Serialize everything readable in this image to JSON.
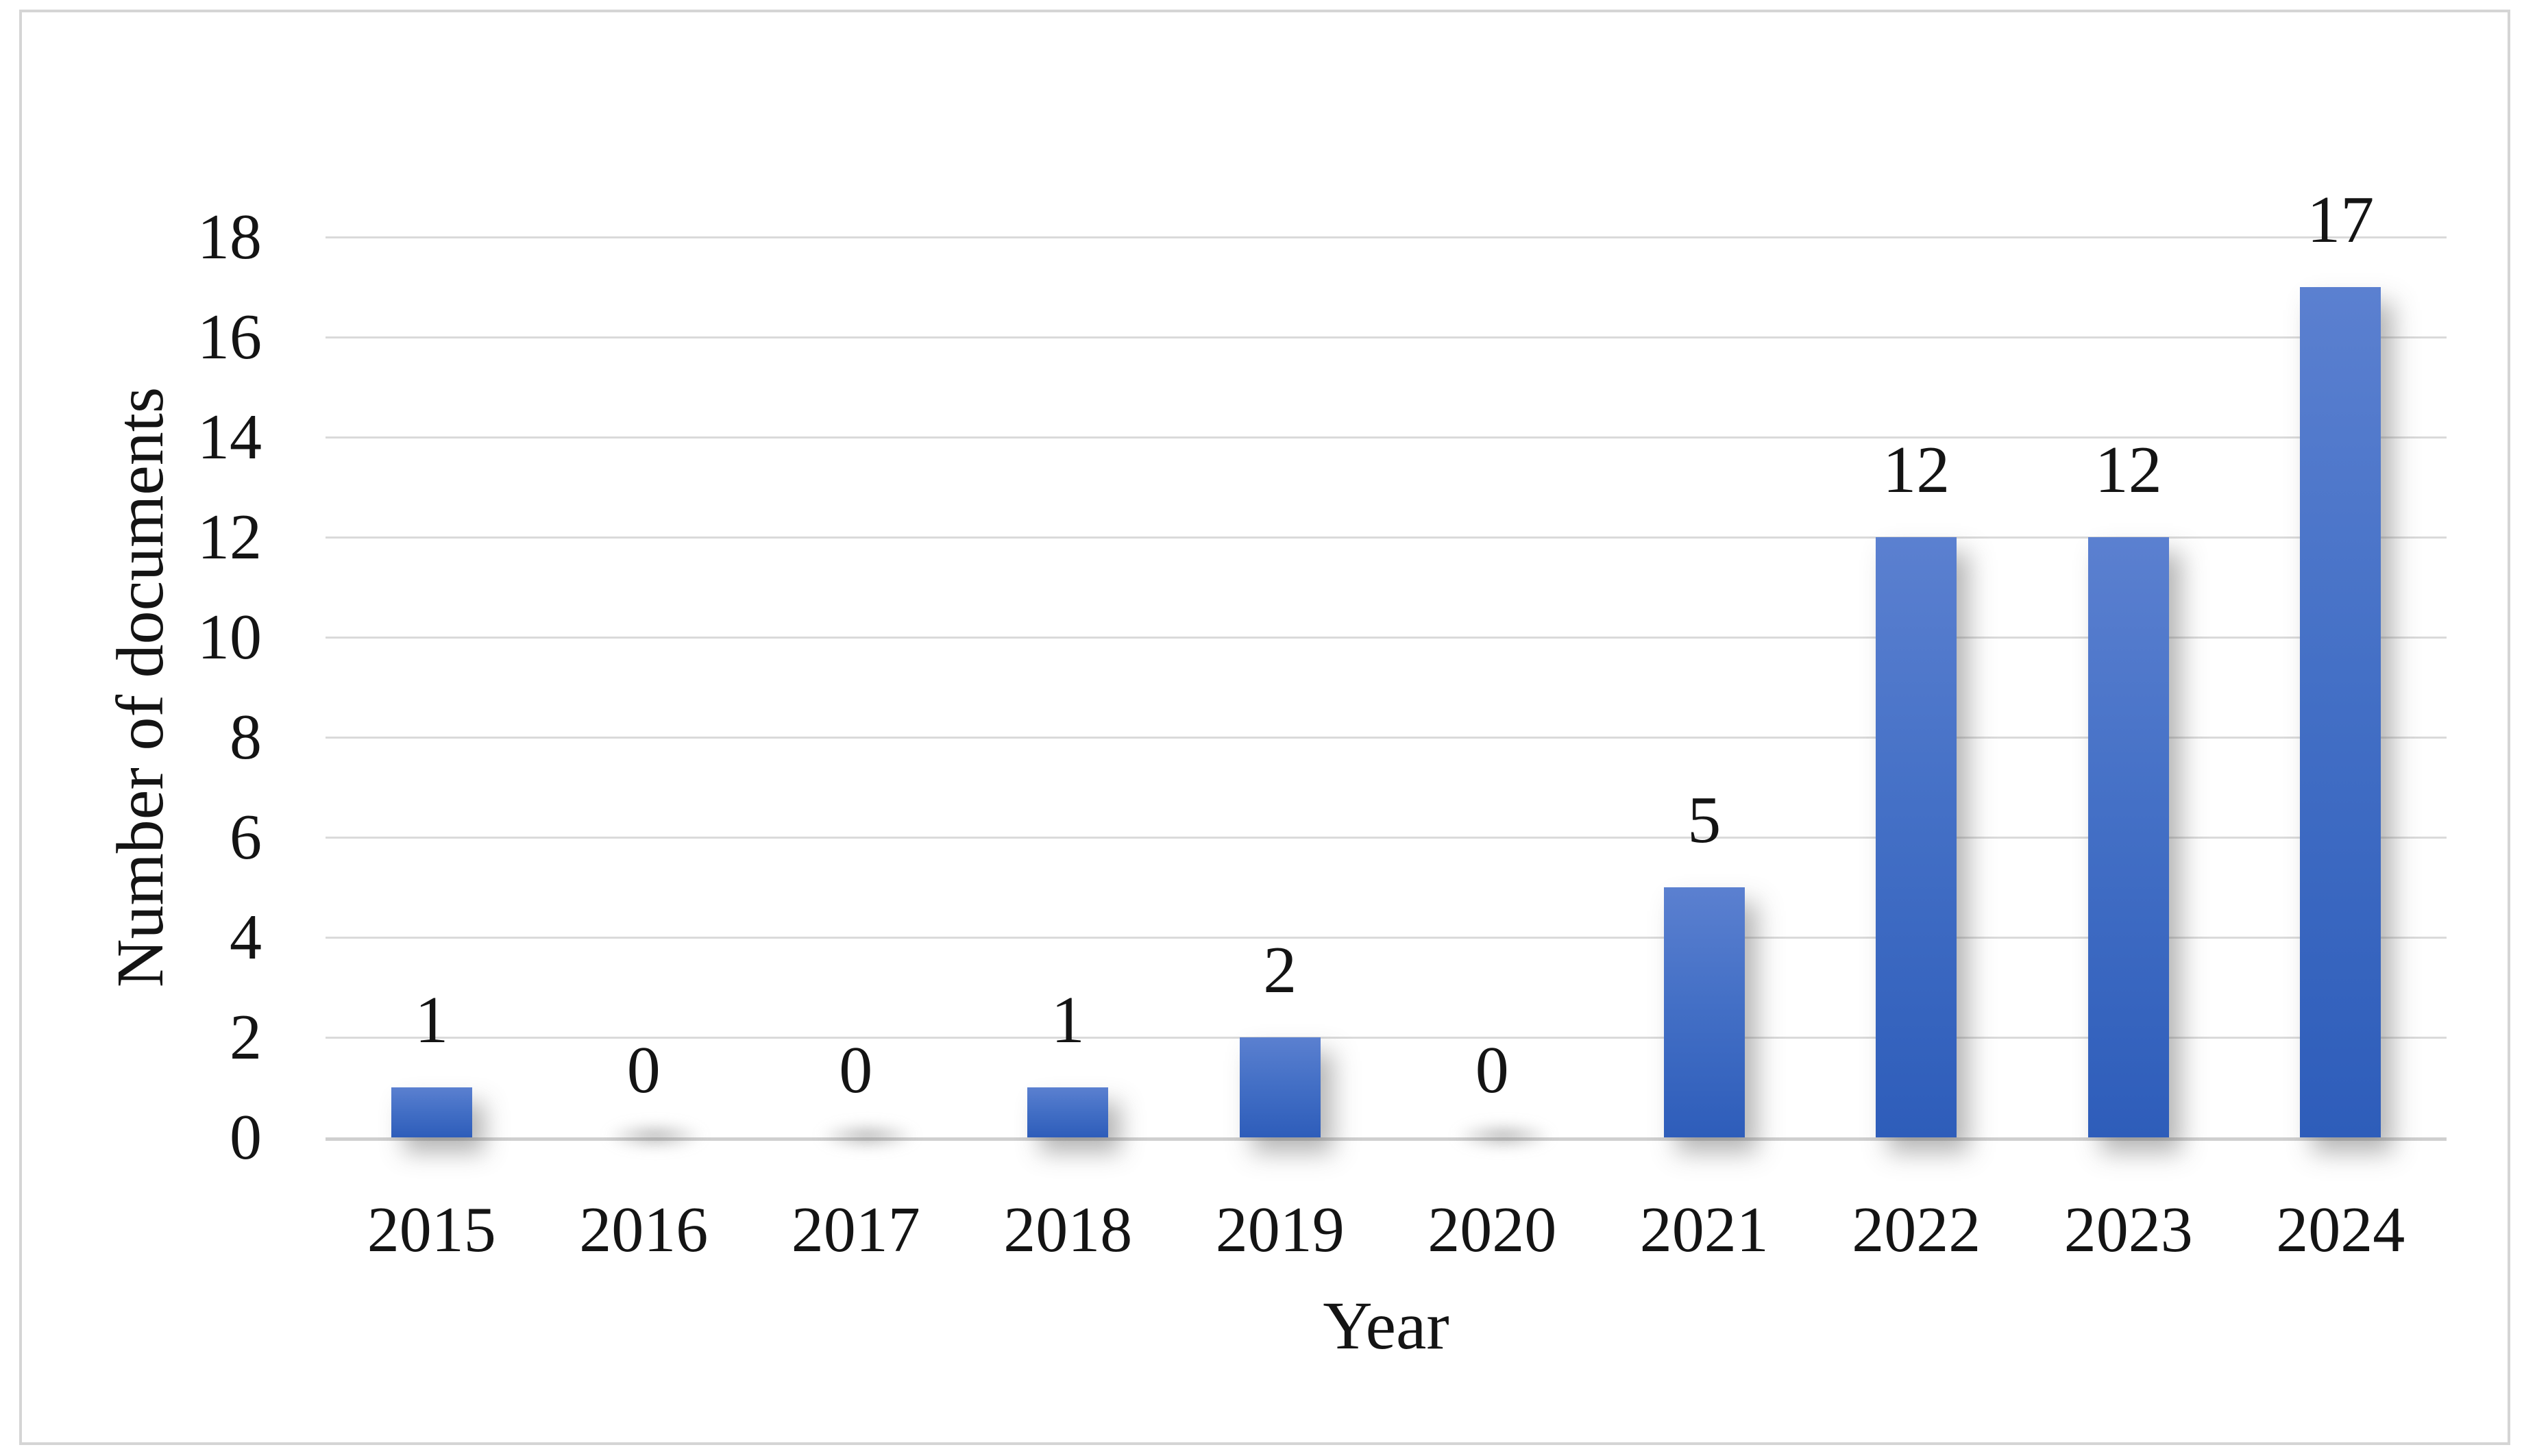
{
  "figure": {
    "background_color": "#ffffff",
    "border_color": "#d5d5d5"
  },
  "chart_data": {
    "type": "bar",
    "title": "",
    "categories": [
      "2015",
      "2016",
      "2017",
      "2018",
      "2019",
      "2020",
      "2021",
      "2022",
      "2023",
      "2024"
    ],
    "values": [
      1,
      0,
      0,
      1,
      2,
      0,
      5,
      12,
      12,
      17
    ],
    "data_label_texts": [
      "1",
      "0",
      "0",
      "1",
      "2",
      "0",
      "5",
      "12",
      "12",
      "17"
    ],
    "xlabel": "Year",
    "ylabel": "Number of documents",
    "ylim": [
      0,
      18
    ],
    "yticks": [
      0,
      2,
      4,
      6,
      8,
      10,
      12,
      14,
      16,
      18
    ],
    "grid": "horizontal",
    "legend": "none",
    "bar_color_top": "#5b80d0",
    "bar_color_bottom": "#2e5dba",
    "gridline_color": "#dadada",
    "axis_line_color": "#cfcfcf",
    "label_color": "#141414"
  }
}
